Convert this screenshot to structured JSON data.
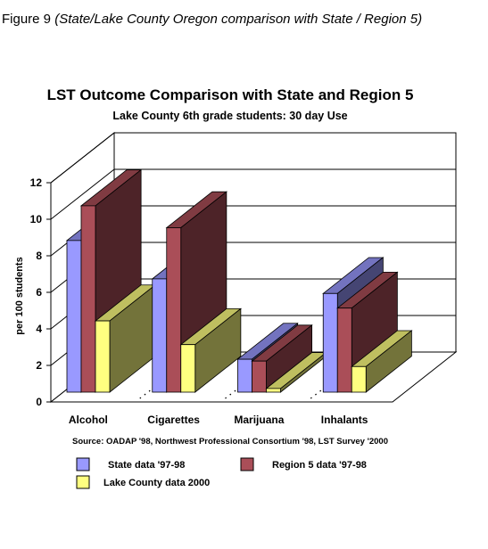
{
  "figure_caption": {
    "prefix": "Figure 9 ",
    "text": "(State/Lake County Oregon comparison with State / Region 5)"
  },
  "chart_data": {
    "type": "bar",
    "title": "LST Outcome Comparison with State and Region 5",
    "subtitle": "Lake County 6th grade students: 30 day Use",
    "ylabel": "per 100 students",
    "xlabel": "",
    "ylim": [
      0,
      12
    ],
    "yticks": [
      "0",
      "2",
      "4",
      "6",
      "8",
      "10",
      "12"
    ],
    "categories": [
      "Alcohol",
      "Cigarettes",
      "Marijuana",
      "Inhalants"
    ],
    "series": [
      {
        "name": "State data '97-98",
        "values": [
          8.3,
          6.2,
          1.8,
          5.4
        ],
        "color": "#9999ff"
      },
      {
        "name": "Region 5 data '97-98",
        "values": [
          10.2,
          9.0,
          1.7,
          4.6
        ],
        "color": "#aa4e58"
      },
      {
        "name": "Lake County data 2000",
        "values": [
          3.9,
          2.6,
          0.2,
          1.4
        ],
        "color": "#ffff80"
      }
    ],
    "source": "Source: OADAP '98, Northwest Professional Consortium '98, LST Survey '2000",
    "grid": true,
    "legend_position": "bottom"
  }
}
